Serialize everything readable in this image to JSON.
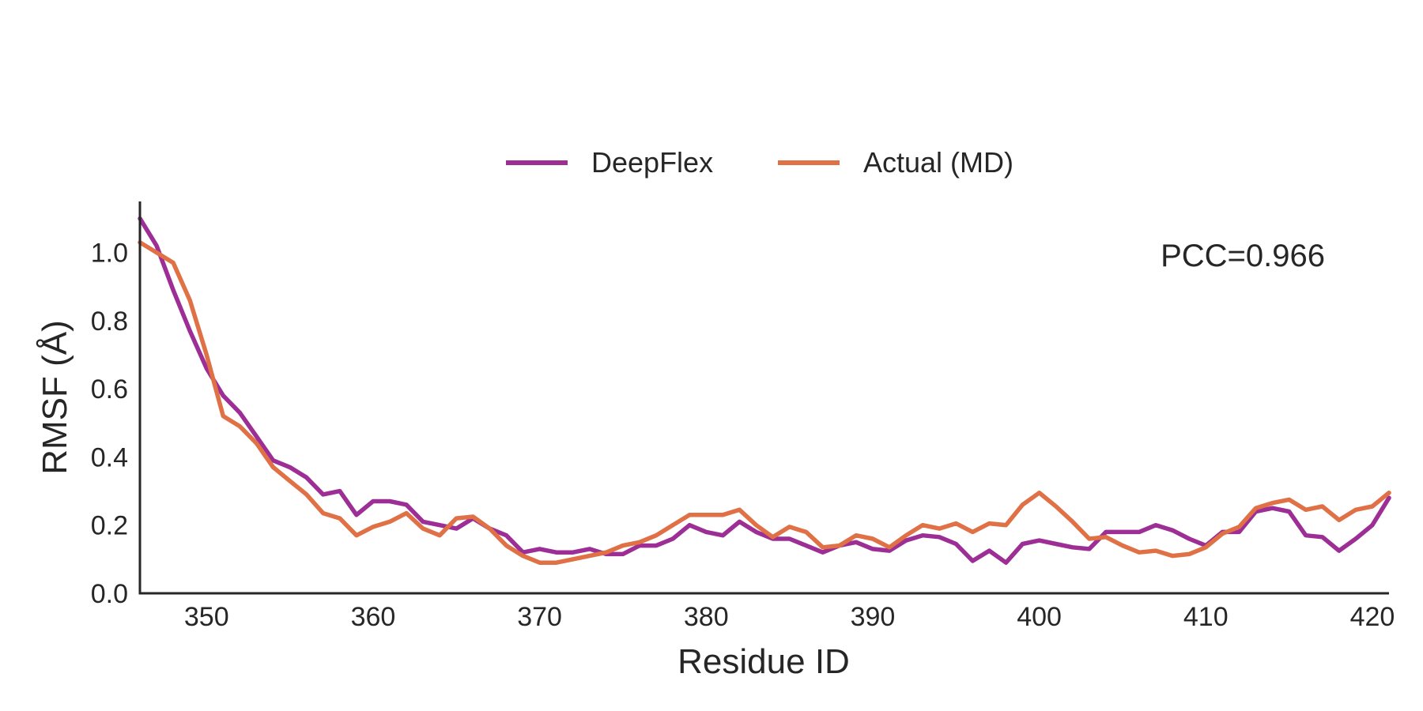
{
  "chart_data": {
    "type": "line",
    "title": "",
    "xlabel": "Residue ID",
    "ylabel": "RMSF (Å)",
    "xlim": [
      346,
      421
    ],
    "ylim": [
      0.0,
      1.15
    ],
    "xticks": [
      350,
      360,
      370,
      380,
      390,
      400,
      410,
      420
    ],
    "yticks": [
      0.0,
      0.2,
      0.4,
      0.6,
      0.8,
      1.0
    ],
    "xtick_labels": [
      "350",
      "360",
      "370",
      "380",
      "390",
      "400",
      "410",
      "420"
    ],
    "ytick_labels": [
      "0.0",
      "0.2",
      "0.4",
      "0.6",
      "0.8",
      "1.0"
    ],
    "grid": false,
    "legend_position": "top-center",
    "annotation": "PCC=0.966",
    "x": [
      346,
      347,
      348,
      349,
      350,
      351,
      352,
      353,
      354,
      355,
      356,
      357,
      358,
      359,
      360,
      361,
      362,
      363,
      364,
      365,
      366,
      367,
      368,
      369,
      370,
      371,
      372,
      373,
      374,
      375,
      376,
      377,
      378,
      379,
      380,
      381,
      382,
      383,
      384,
      385,
      386,
      387,
      388,
      389,
      390,
      391,
      392,
      393,
      394,
      395,
      396,
      397,
      398,
      399,
      400,
      401,
      402,
      403,
      404,
      405,
      406,
      407,
      408,
      409,
      410,
      411,
      412,
      413,
      414,
      415,
      416,
      417,
      418,
      419,
      420,
      421
    ],
    "series": [
      {
        "name": "DeepFlex",
        "color": "#9c2e96",
        "values": [
          1.1,
          1.02,
          0.89,
          0.77,
          0.66,
          0.58,
          0.53,
          0.46,
          0.39,
          0.37,
          0.34,
          0.29,
          0.3,
          0.23,
          0.27,
          0.27,
          0.26,
          0.21,
          0.2,
          0.19,
          0.22,
          0.19,
          0.17,
          0.12,
          0.13,
          0.12,
          0.12,
          0.13,
          0.115,
          0.115,
          0.14,
          0.14,
          0.16,
          0.2,
          0.18,
          0.17,
          0.21,
          0.18,
          0.16,
          0.16,
          0.14,
          0.12,
          0.14,
          0.15,
          0.13,
          0.125,
          0.155,
          0.17,
          0.165,
          0.145,
          0.095,
          0.125,
          0.09,
          0.145,
          0.155,
          0.145,
          0.135,
          0.13,
          0.18,
          0.18,
          0.18,
          0.2,
          0.185,
          0.16,
          0.14,
          0.18,
          0.18,
          0.24,
          0.25,
          0.24,
          0.17,
          0.165,
          0.125,
          0.16,
          0.2,
          0.28
        ]
      },
      {
        "name": "Actual (MD)",
        "color": "#e07045",
        "values": [
          1.03,
          1.0,
          0.97,
          0.86,
          0.7,
          0.52,
          0.49,
          0.44,
          0.37,
          0.33,
          0.29,
          0.235,
          0.22,
          0.17,
          0.195,
          0.21,
          0.235,
          0.19,
          0.17,
          0.22,
          0.225,
          0.19,
          0.14,
          0.11,
          0.09,
          0.09,
          0.1,
          0.11,
          0.12,
          0.14,
          0.15,
          0.17,
          0.2,
          0.23,
          0.23,
          0.23,
          0.245,
          0.2,
          0.165,
          0.195,
          0.18,
          0.135,
          0.14,
          0.17,
          0.16,
          0.135,
          0.17,
          0.2,
          0.19,
          0.205,
          0.18,
          0.205,
          0.2,
          0.26,
          0.295,
          0.255,
          0.21,
          0.16,
          0.165,
          0.14,
          0.12,
          0.125,
          0.11,
          0.115,
          0.135,
          0.175,
          0.195,
          0.25,
          0.265,
          0.275,
          0.245,
          0.255,
          0.215,
          0.245,
          0.255,
          0.295
        ]
      }
    ]
  }
}
